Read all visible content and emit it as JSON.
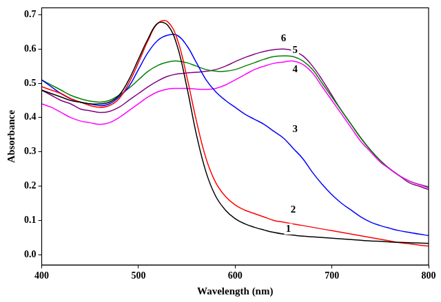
{
  "chart_data": {
    "type": "line",
    "x_label": "Wavelength (nm)",
    "y_label": "Absorbance",
    "x": [
      400,
      410,
      420,
      430,
      440,
      450,
      460,
      470,
      480,
      490,
      500,
      510,
      520,
      530,
      540,
      550,
      560,
      570,
      580,
      590,
      600,
      610,
      620,
      630,
      640,
      650,
      660,
      670,
      680,
      690,
      700,
      710,
      720,
      730,
      740,
      750,
      760,
      770,
      780,
      790,
      800
    ],
    "series": [
      {
        "name": "1",
        "color": "#000000",
        "label_x": 655,
        "label_y": 0.075,
        "values": [
          0.48,
          0.47,
          0.46,
          0.45,
          0.445,
          0.44,
          0.44,
          0.445,
          0.465,
          0.51,
          0.57,
          0.63,
          0.675,
          0.67,
          0.61,
          0.49,
          0.35,
          0.24,
          0.17,
          0.13,
          0.105,
          0.09,
          0.08,
          0.072,
          0.065,
          0.06,
          0.057,
          0.054,
          0.052,
          0.05,
          0.048,
          0.046,
          0.044,
          0.042,
          0.04,
          0.039,
          0.037,
          0.036,
          0.035,
          0.034,
          0.033
        ]
      },
      {
        "name": "2",
        "color": "#ff0000",
        "label_x": 660,
        "label_y": 0.13,
        "values": [
          0.49,
          0.48,
          0.47,
          0.455,
          0.445,
          0.435,
          0.43,
          0.435,
          0.455,
          0.5,
          0.56,
          0.625,
          0.675,
          0.68,
          0.63,
          0.52,
          0.39,
          0.28,
          0.21,
          0.17,
          0.145,
          0.13,
          0.12,
          0.11,
          0.1,
          0.095,
          0.09,
          0.085,
          0.08,
          0.075,
          0.07,
          0.065,
          0.06,
          0.055,
          0.05,
          0.045,
          0.04,
          0.035,
          0.032,
          0.028,
          0.025
        ]
      },
      {
        "name": "3",
        "color": "#0000ff",
        "label_x": 662,
        "label_y": 0.365,
        "values": [
          0.51,
          0.49,
          0.47,
          0.455,
          0.445,
          0.44,
          0.435,
          0.44,
          0.46,
          0.49,
          0.54,
          0.59,
          0.625,
          0.64,
          0.64,
          0.61,
          0.56,
          0.51,
          0.475,
          0.45,
          0.43,
          0.41,
          0.395,
          0.38,
          0.36,
          0.34,
          0.31,
          0.28,
          0.24,
          0.205,
          0.175,
          0.15,
          0.13,
          0.11,
          0.095,
          0.085,
          0.077,
          0.07,
          0.065,
          0.06,
          0.056
        ]
      },
      {
        "name": "4",
        "color": "#ff00ff",
        "label_x": 662,
        "label_y": 0.54,
        "values": [
          0.44,
          0.43,
          0.415,
          0.4,
          0.39,
          0.385,
          0.38,
          0.385,
          0.4,
          0.42,
          0.44,
          0.46,
          0.475,
          0.483,
          0.485,
          0.485,
          0.483,
          0.482,
          0.485,
          0.495,
          0.51,
          0.525,
          0.54,
          0.55,
          0.558,
          0.562,
          0.565,
          0.555,
          0.53,
          0.49,
          0.45,
          0.41,
          0.37,
          0.33,
          0.3,
          0.27,
          0.25,
          0.23,
          0.215,
          0.205,
          0.195
        ]
      },
      {
        "name": "5",
        "color": "#008000",
        "label_x": 662,
        "label_y": 0.597,
        "values": [
          0.51,
          0.495,
          0.48,
          0.465,
          0.455,
          0.448,
          0.445,
          0.45,
          0.465,
          0.485,
          0.51,
          0.535,
          0.552,
          0.562,
          0.565,
          0.56,
          0.55,
          0.54,
          0.535,
          0.535,
          0.54,
          0.55,
          0.56,
          0.57,
          0.578,
          0.58,
          0.578,
          0.565,
          0.54,
          0.5,
          0.46,
          0.42,
          0.38,
          0.34,
          0.305,
          0.275,
          0.25,
          0.23,
          0.215,
          0.205,
          0.198
        ]
      },
      {
        "name": "6",
        "color": "#800080",
        "label_x": 650,
        "label_y": 0.63,
        "values": [
          0.48,
          0.465,
          0.45,
          0.44,
          0.425,
          0.42,
          0.415,
          0.418,
          0.43,
          0.45,
          0.47,
          0.49,
          0.507,
          0.52,
          0.527,
          0.53,
          0.532,
          0.535,
          0.54,
          0.55,
          0.563,
          0.575,
          0.585,
          0.593,
          0.598,
          0.6,
          0.595,
          0.58,
          0.55,
          0.51,
          0.465,
          0.42,
          0.38,
          0.34,
          0.305,
          0.275,
          0.25,
          0.23,
          0.21,
          0.2,
          0.19
        ]
      }
    ],
    "xlim": [
      400,
      800
    ],
    "xticks": [
      400,
      500,
      600,
      700,
      800
    ],
    "ylim": [
      -0.03,
      0.72
    ],
    "yticks": [
      {
        "value": 0,
        "label": "0.0"
      },
      {
        "value": 0.1,
        "label": "0.1"
      },
      {
        "value": 0.2,
        "label": "0.2"
      },
      {
        "value": 0.3,
        "label": "0.3"
      },
      {
        "value": 0.4,
        "label": "0.4"
      },
      {
        "value": 0.5,
        "label": "0.5"
      },
      {
        "value": 0.6,
        "label": "0.6"
      },
      {
        "value": 0.7,
        "label": "0.7"
      }
    ],
    "grid": false,
    "legend": false
  }
}
